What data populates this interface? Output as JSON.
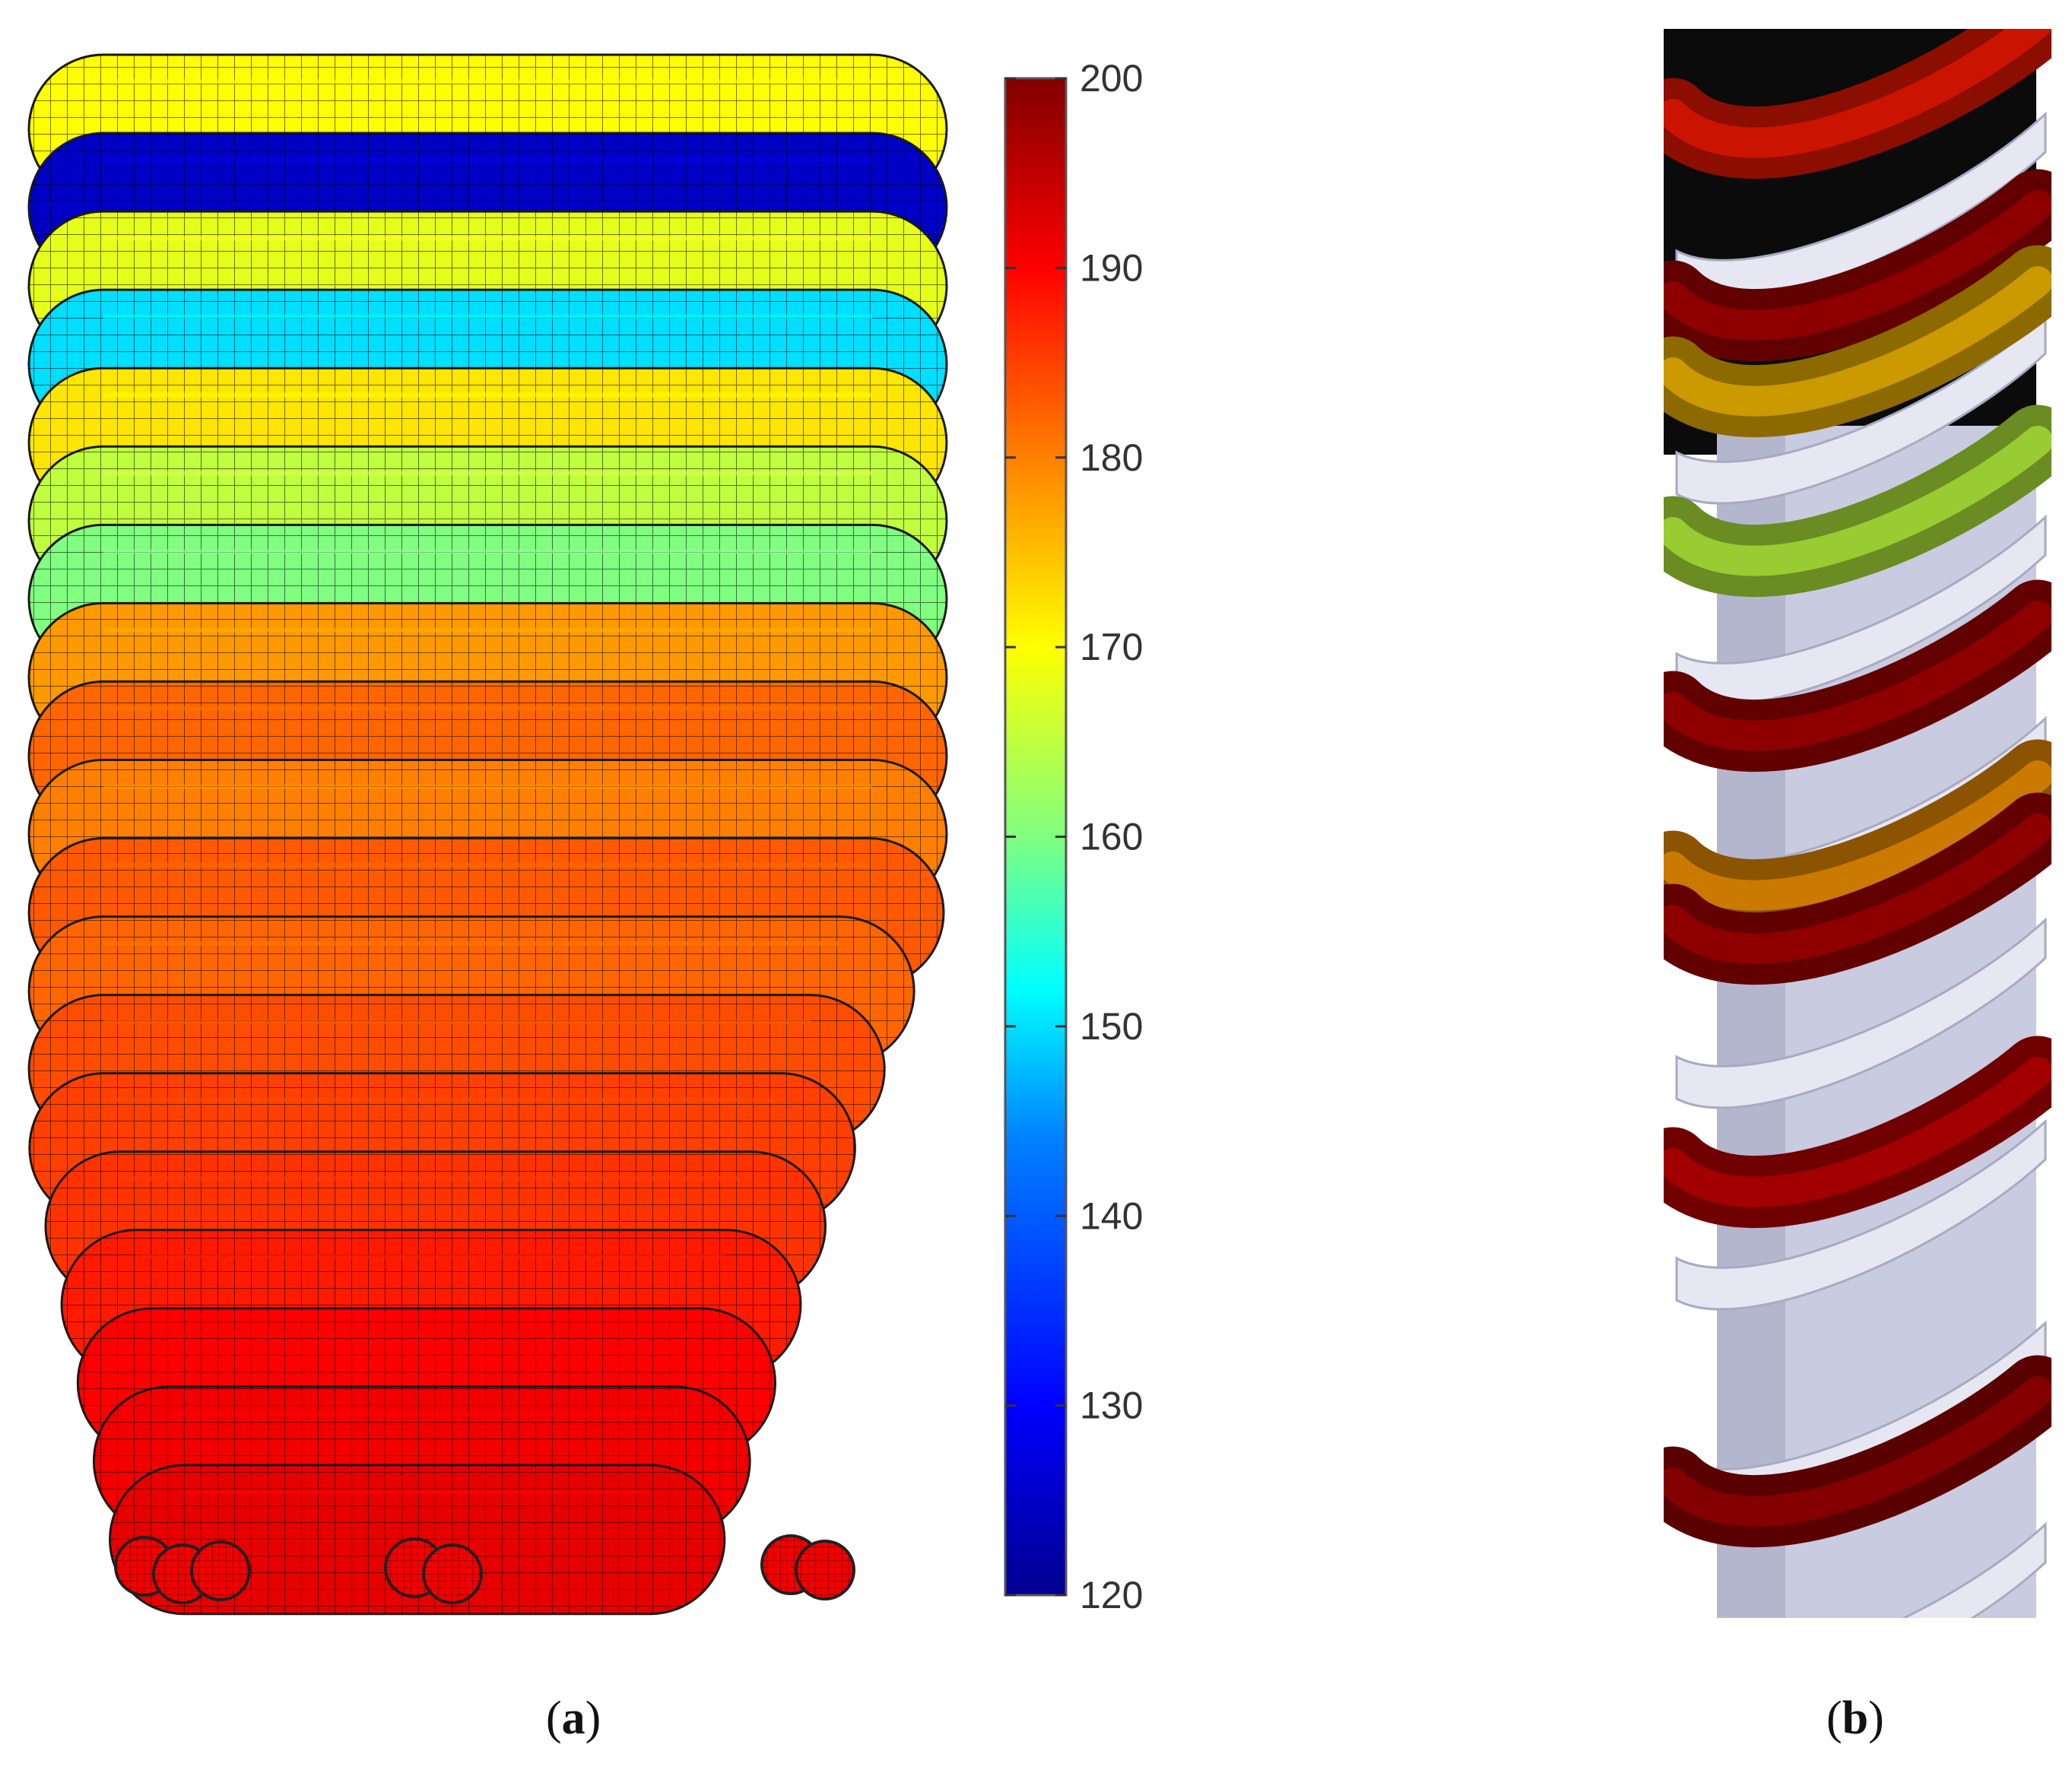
{
  "colorbar": {
    "min": 120,
    "max": 200,
    "ticks": [
      "200",
      "190",
      "180",
      "170",
      "160",
      "150",
      "140",
      "130",
      "120"
    ],
    "colormap": [
      "#00008f",
      "#0000ff",
      "#0080ff",
      "#00ffff",
      "#80ff80",
      "#ffff00",
      "#ff8000",
      "#ff0000",
      "#800000"
    ]
  },
  "panel_a": {
    "caption_open": "(",
    "caption_letter": "a",
    "caption_close": ")",
    "layer_values": [
      170,
      125,
      168,
      150,
      172,
      165,
      160,
      178,
      182,
      180,
      183,
      182,
      184,
      185,
      186,
      188,
      190,
      191,
      192
    ]
  },
  "panel_b": {
    "caption_open": "(",
    "caption_letter": "b",
    "caption_close": ")",
    "shaft_color": "#c9cbe0",
    "background_color": "#000000"
  }
}
